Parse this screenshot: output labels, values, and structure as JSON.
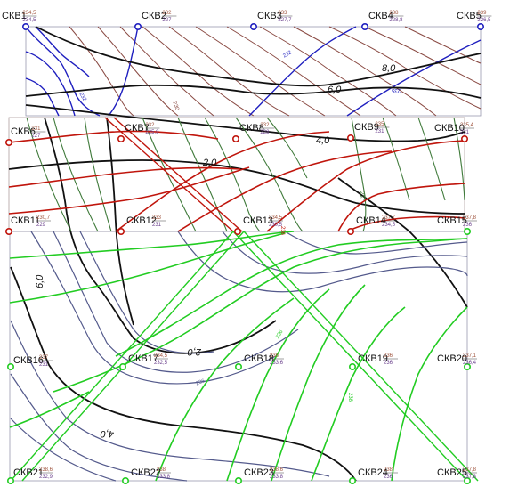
{
  "colors": {
    "blue": "#1f1fbf",
    "red": "#c0150c",
    "green": "#22cc22",
    "brown": "#8a4a43",
    "darkgreen": "#3f7a3a",
    "navy": "#545a8c",
    "black": "#111111",
    "frame": "#8a8aa0"
  },
  "wells": [
    {
      "id": "w1",
      "label": "СКВ1",
      "top": "234,5",
      "bottom": "234,5",
      "color": "blue"
    },
    {
      "id": "w2",
      "label": "СКВ2",
      "top": "232",
      "bottom": "227",
      "color": "blue"
    },
    {
      "id": "w3",
      "label": "СКВ3",
      "top": "233",
      "bottom": "227,7",
      "color": "blue"
    },
    {
      "id": "w4",
      "label": "СКВ4",
      "top": "238",
      "bottom": "228,8",
      "color": "blue"
    },
    {
      "id": "w5",
      "label": "СКВ5",
      "top": "239",
      "bottom": "226,5",
      "color": "blue"
    },
    {
      "id": "w6",
      "label": "СКВ6",
      "top": "231",
      "bottom": "227",
      "color": "red"
    },
    {
      "id": "w7",
      "label": "СКВ7",
      "top": "232",
      "bottom": "225,9",
      "color": "red"
    },
    {
      "id": "w8",
      "label": "СКВ8",
      "top": "232",
      "bottom": "228",
      "color": "red"
    },
    {
      "id": "w9",
      "label": "СКВ9",
      "top": "235",
      "bottom": "231",
      "color": "red"
    },
    {
      "id": "w10",
      "label": "СКВ10",
      "top": "235,4",
      "bottom": "231",
      "color": "red"
    },
    {
      "id": "w11",
      "label": "СКВ11",
      "top": "230,7",
      "bottom": "229",
      "color": "red"
    },
    {
      "id": "w12",
      "label": "СКВ12",
      "top": "233",
      "bottom": "231",
      "color": "red"
    },
    {
      "id": "w13",
      "label": "СКВ13",
      "top": "234,5",
      "bottom": "230,5",
      "color": "red"
    },
    {
      "id": "w14",
      "label": "СКВ14",
      "top": "237,7",
      "bottom": "234,5",
      "color": "red"
    },
    {
      "id": "w15",
      "label": "СКВ15",
      "top": "237,8",
      "bottom": "236",
      "color": "green"
    },
    {
      "id": "w16",
      "label": "СКВ16",
      "top": "237",
      "bottom": "231",
      "color": "green"
    },
    {
      "id": "w17",
      "label": "СКВ17",
      "top": "234,5",
      "bottom": "232,5",
      "color": "green"
    },
    {
      "id": "w18",
      "label": "СКВ18",
      "top": "236",
      "bottom": "233,6",
      "color": "green"
    },
    {
      "id": "w19",
      "label": "СКВ19",
      "top": "236",
      "bottom": "236",
      "color": "green"
    },
    {
      "id": "w20",
      "label": "СКВ20",
      "top": "237,1",
      "bottom": "236,4",
      "color": "green"
    },
    {
      "id": "w21",
      "label": "СКВ21",
      "top": "238,6",
      "bottom": "232,9",
      "color": "green"
    },
    {
      "id": "w22",
      "label": "СКВ22",
      "top": "238",
      "bottom": "233,8",
      "color": "green"
    },
    {
      "id": "w23",
      "label": "СКВ23",
      "top": "238,6",
      "bottom": "233,8",
      "color": "green"
    },
    {
      "id": "w24",
      "label": "СКВ24",
      "top": "238",
      "bottom": "236",
      "color": "green"
    },
    {
      "id": "w25",
      "label": "СКВ25",
      "top": "237,8",
      "bottom": "237,8",
      "color": "green"
    }
  ],
  "isoline_labels": [
    "8,0",
    "6,0",
    "4,0",
    "2,0",
    "2,0",
    "4,0",
    "6,0"
  ],
  "contour_tags": [
    "232",
    "230",
    "232",
    "235",
    "236",
    "237",
    "236",
    "236",
    "238"
  ]
}
